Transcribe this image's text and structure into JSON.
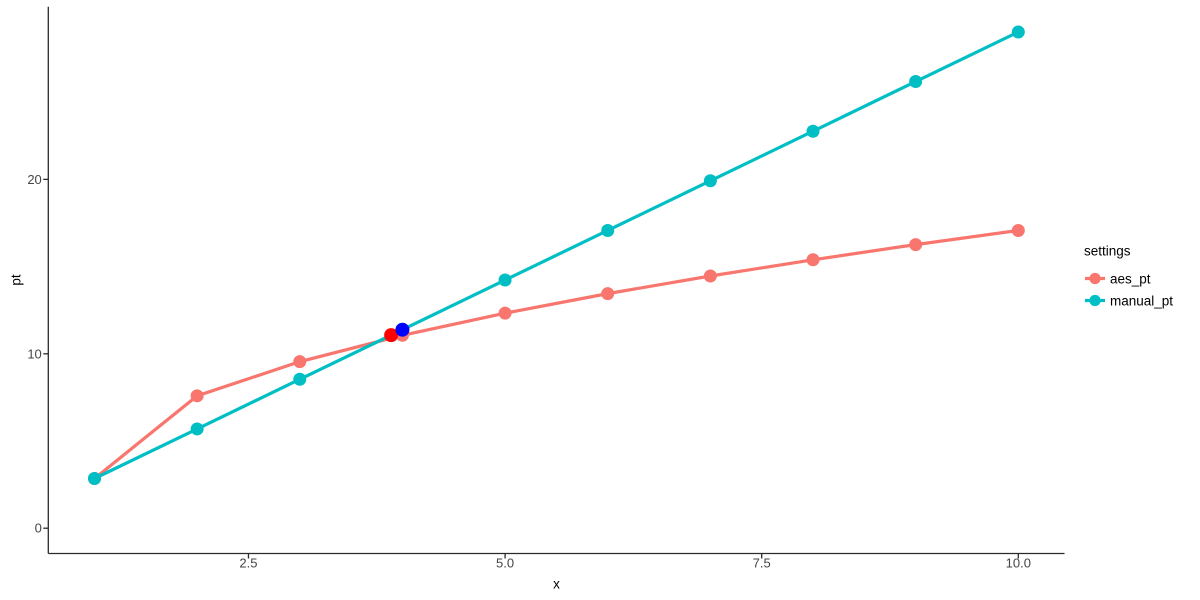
{
  "chart_data": {
    "type": "line",
    "title": "",
    "xlabel": "x",
    "ylabel": "pt",
    "x": [
      1,
      2,
      3,
      4,
      5,
      6,
      7,
      8,
      9,
      10
    ],
    "series": [
      {
        "name": "aes_pt",
        "color": "#F8766D",
        "values": [
          2.85,
          7.59,
          9.55,
          11.06,
          12.33,
          13.45,
          14.46,
          15.39,
          16.26,
          17.07
        ]
      },
      {
        "name": "manual_pt",
        "color": "#00BFC4",
        "values": [
          2.85,
          5.69,
          8.54,
          11.38,
          14.23,
          17.07,
          19.92,
          22.76,
          25.61,
          28.45
        ]
      }
    ],
    "highlight_points": [
      {
        "name": "red-highlight-point",
        "x": 3.89,
        "y": 11.07,
        "color": "#FF0000"
      },
      {
        "name": "blue-highlight-point",
        "x": 4.0,
        "y": 11.38,
        "color": "#0000FF"
      }
    ],
    "x_ticks": {
      "values": [
        2.5,
        5.0,
        7.5,
        10.0
      ],
      "labels": [
        "2.5",
        "5.0",
        "7.5",
        "10.0"
      ]
    },
    "y_ticks": {
      "values": [
        0,
        10,
        20
      ],
      "labels": [
        "0",
        "10",
        "20"
      ]
    },
    "xlim": [
      0.55,
      10.45
    ],
    "ylim": [
      -1.45,
      29.9
    ],
    "grid": false,
    "background": "#ffffff",
    "axis_color": "#2b2b2b",
    "legend": {
      "title": "settings",
      "position": "right",
      "entries": [
        {
          "label": "aes_pt",
          "color": "#F8766D"
        },
        {
          "label": "manual_pt",
          "color": "#00BFC4"
        }
      ]
    }
  }
}
